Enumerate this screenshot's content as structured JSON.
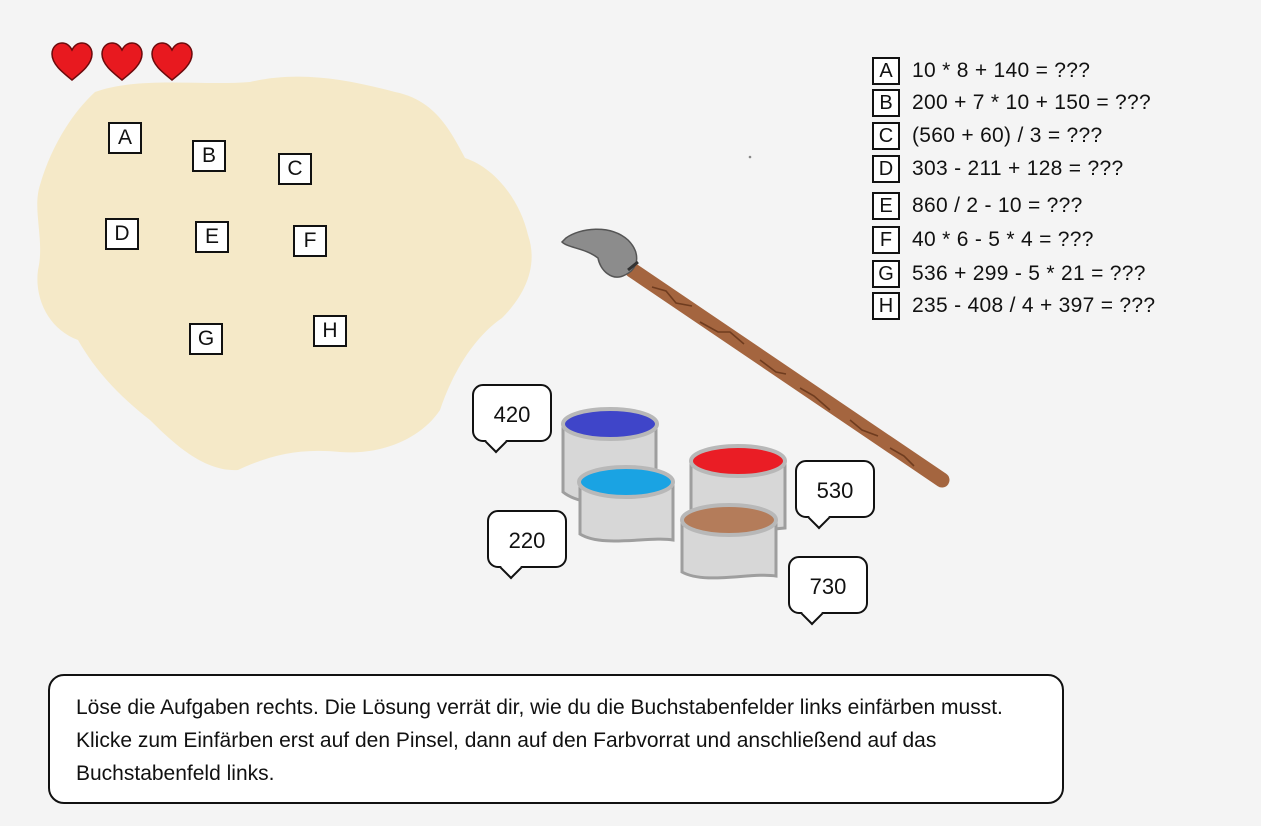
{
  "game": {
    "lives": {
      "count": 3,
      "icon": "heart-icon",
      "color": "#e8191f"
    },
    "map": {
      "fill_color": "#f5e9c8",
      "fields": [
        {
          "letter": "A"
        },
        {
          "letter": "B"
        },
        {
          "letter": "C"
        },
        {
          "letter": "D"
        },
        {
          "letter": "E"
        },
        {
          "letter": "F"
        },
        {
          "letter": "G"
        },
        {
          "letter": "H"
        }
      ]
    },
    "tasks": [
      {
        "letter": "A",
        "expression": "10 * 8 + 140 = ???"
      },
      {
        "letter": "B",
        "expression": "200 + 7 * 10 + 150 = ???"
      },
      {
        "letter": "C",
        "expression": "(560 + 60) / 3 = ???"
      },
      {
        "letter": "D",
        "expression": "303 - 211 + 128 = ???"
      },
      {
        "letter": "E",
        "expression": "860 / 2 - 10 = ???"
      },
      {
        "letter": "F",
        "expression": "40 * 6 - 5 * 4 = ???"
      },
      {
        "letter": "G",
        "expression": "536 + 299 - 5 * 21 = ???"
      },
      {
        "letter": "H",
        "expression": "235 - 408 / 4 + 397 = ???"
      }
    ],
    "paint_pots": [
      {
        "label": "420",
        "color": "#3f45c9"
      },
      {
        "label": "220",
        "color": "#1aa3e3"
      },
      {
        "label": "530",
        "color": "#ea1d25"
      },
      {
        "label": "730",
        "color": "#b47c5a"
      }
    ],
    "brush": {
      "icon": "paintbrush-icon",
      "handle_color": "#a4653f",
      "bristle_color": "#8c8c8c"
    },
    "instructions": "Löse die Aufgaben rechts. Die Lösung verrät dir, wie du die Buchstabenfelder links einfärben musst. Klicke zum Einfärben erst auf den Pinsel, dann auf den Farbvorrat und anschließend auf das Buchstabenfeld links."
  }
}
